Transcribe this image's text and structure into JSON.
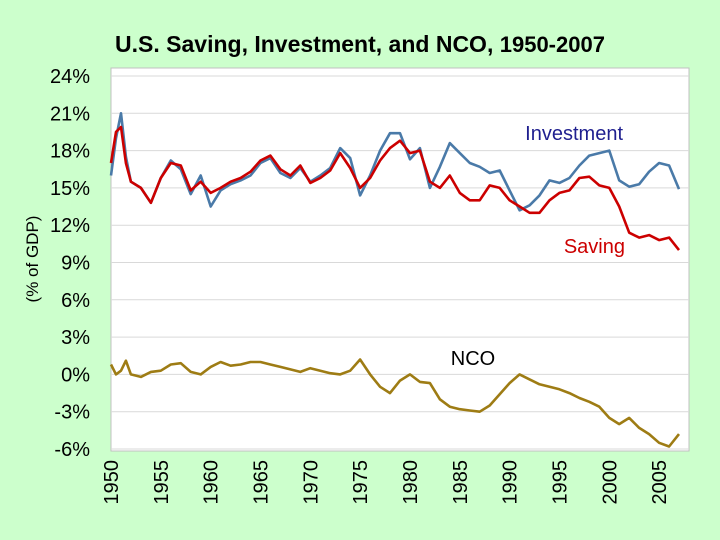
{
  "chart_data": {
    "type": "line",
    "title": "U.S. Saving, Investment, and NCO",
    "title_years": "1950-2007",
    "title_separator": ", ",
    "xlabel": "",
    "ylabel": "(% of GDP)",
    "xlim": [
      1950,
      2008
    ],
    "ylim": [
      -6,
      24
    ],
    "y_ticks": [
      24,
      21,
      18,
      15,
      12,
      9,
      6,
      3,
      0,
      -3,
      -6
    ],
    "y_tick_labels": [
      "24%",
      "21%",
      "18%",
      "15%",
      "12%",
      "9%",
      "6%",
      "3%",
      "0%",
      "-3%",
      "-6%"
    ],
    "x_ticks": [
      1950,
      1955,
      1960,
      1965,
      1970,
      1975,
      1980,
      1985,
      1990,
      1995,
      2000,
      2005
    ],
    "x_tick_labels": [
      "1950",
      "1955",
      "1960",
      "1965",
      "1970",
      "1975",
      "1980",
      "1985",
      "1990",
      "1995",
      "2000",
      "2005"
    ],
    "grid": true,
    "colors": {
      "investment": "#4a7aa8",
      "saving": "#cc0000",
      "nco": "#9e7c14",
      "investment_label": "#1f1f8f",
      "saving_label": "#cc0000",
      "nco_label": "#000000"
    },
    "series": [
      {
        "name": "Investment",
        "x": [
          1950,
          1950.5,
          1951,
          1951.5,
          1952,
          1953,
          1954,
          1955,
          1956,
          1957,
          1958,
          1959,
          1960,
          1961,
          1962,
          1963,
          1964,
          1965,
          1966,
          1967,
          1968,
          1969,
          1970,
          1971,
          1972,
          1973,
          1974,
          1975,
          1976,
          1977,
          1978,
          1979,
          1980,
          1981,
          1982,
          1983,
          1984,
          1985,
          1986,
          1987,
          1988,
          1989,
          1990,
          1991,
          1992,
          1993,
          1994,
          1995,
          1996,
          1997,
          1998,
          1999,
          2000,
          2001,
          2002,
          2003,
          2004,
          2005,
          2006,
          2007
        ],
        "values": [
          16.0,
          19.0,
          21.0,
          17.5,
          15.5,
          15.0,
          13.8,
          15.8,
          17.2,
          16.5,
          14.5,
          16.0,
          13.5,
          14.8,
          15.3,
          15.6,
          16.0,
          17.0,
          17.4,
          16.2,
          15.8,
          16.6,
          15.5,
          16.0,
          16.6,
          18.2,
          17.4,
          14.4,
          16.0,
          18.0,
          19.4,
          19.4,
          17.3,
          18.2,
          15.0,
          16.7,
          18.6,
          17.8,
          17.0,
          16.7,
          16.2,
          16.4,
          14.8,
          13.2,
          13.6,
          14.4,
          15.6,
          15.4,
          15.8,
          16.8,
          17.6,
          17.8,
          18.0,
          15.6,
          15.1,
          15.3,
          16.3,
          17.0,
          16.8,
          14.9
        ]
      },
      {
        "name": "Saving",
        "x": [
          1950,
          1950.5,
          1951,
          1951.5,
          1952,
          1953,
          1954,
          1955,
          1956,
          1957,
          1958,
          1959,
          1960,
          1961,
          1962,
          1963,
          1964,
          1965,
          1966,
          1967,
          1968,
          1969,
          1970,
          1971,
          1972,
          1973,
          1974,
          1975,
          1976,
          1977,
          1978,
          1979,
          1980,
          1981,
          1982,
          1983,
          1984,
          1985,
          1986,
          1987,
          1988,
          1989,
          1990,
          1991,
          1992,
          1993,
          1994,
          1995,
          1996,
          1997,
          1998,
          1999,
          2000,
          2001,
          2002,
          2003,
          2004,
          2005,
          2006,
          2007
        ],
        "values": [
          17.0,
          19.5,
          19.9,
          17.0,
          15.5,
          15.0,
          13.8,
          15.8,
          17.0,
          16.8,
          14.8,
          15.5,
          14.6,
          15.0,
          15.5,
          15.8,
          16.3,
          17.2,
          17.6,
          16.5,
          16.0,
          16.8,
          15.4,
          15.8,
          16.4,
          17.8,
          16.6,
          15.0,
          15.8,
          17.2,
          18.2,
          18.8,
          17.8,
          18.0,
          15.5,
          15.0,
          16.0,
          14.6,
          14.0,
          14.0,
          15.2,
          15.0,
          14.0,
          13.5,
          13.0,
          13.0,
          14.0,
          14.6,
          14.8,
          15.8,
          15.9,
          15.2,
          15.0,
          13.5,
          11.4,
          11.0,
          11.2,
          10.8,
          11.0,
          10.0
        ]
      },
      {
        "name": "NCO",
        "x": [
          1950,
          1950.5,
          1951,
          1951.5,
          1952,
          1953,
          1954,
          1955,
          1956,
          1957,
          1958,
          1959,
          1960,
          1961,
          1962,
          1963,
          1964,
          1965,
          1966,
          1967,
          1968,
          1969,
          1970,
          1971,
          1972,
          1973,
          1974,
          1975,
          1976,
          1977,
          1978,
          1979,
          1980,
          1981,
          1982,
          1983,
          1984,
          1985,
          1986,
          1987,
          1988,
          1989,
          1990,
          1991,
          1992,
          1993,
          1994,
          1995,
          1996,
          1997,
          1998,
          1999,
          2000,
          2001,
          2002,
          2003,
          2004,
          2005,
          2006,
          2007
        ],
        "values": [
          0.8,
          0.0,
          0.3,
          1.1,
          0.0,
          -0.2,
          0.2,
          0.3,
          0.8,
          0.9,
          0.2,
          0.0,
          0.6,
          1.0,
          0.7,
          0.8,
          1.0,
          1.0,
          0.8,
          0.6,
          0.4,
          0.2,
          0.5,
          0.3,
          0.1,
          0.0,
          0.3,
          1.2,
          0.0,
          -1.0,
          -1.5,
          -0.5,
          0.0,
          -0.6,
          -0.7,
          -2.0,
          -2.6,
          -2.8,
          -2.9,
          -3.0,
          -2.5,
          -1.6,
          -0.7,
          0.0,
          -0.4,
          -0.8,
          -1.0,
          -1.2,
          -1.5,
          -1.9,
          -2.2,
          -2.6,
          -3.5,
          -4.0,
          -3.5,
          -4.3,
          -4.8,
          -5.5,
          -5.8,
          -4.8
        ]
      }
    ],
    "annotations": [
      {
        "text": "Investment",
        "series": "Investment"
      },
      {
        "text": "Saving",
        "series": "Saving"
      },
      {
        "text": "NCO",
        "series": "NCO"
      }
    ]
  }
}
